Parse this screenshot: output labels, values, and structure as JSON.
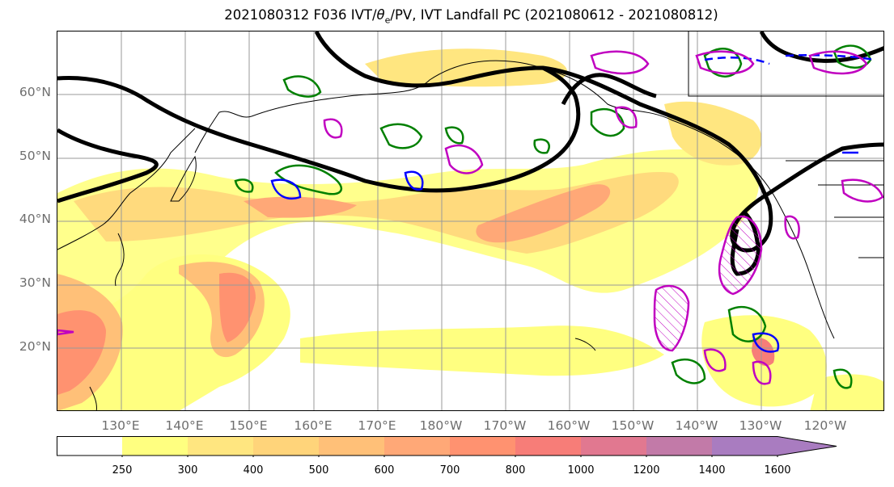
{
  "title": "2021080312 F036 IVT/θe/PV, IVT Landfall PC (2021080612 - 2021080812)",
  "title_parts": {
    "pre": "2021080312 F036 IVT/",
    "theta": "θ",
    "sub": "e",
    "post": "/PV, IVT Landfall PC (2021080612 - 2021080812)"
  },
  "lat_labels": [
    "60°N",
    "50°N",
    "40°N",
    "30°N",
    "20°N"
  ],
  "lon_labels": [
    "130°E",
    "140°E",
    "150°E",
    "160°E",
    "170°E",
    "180°W",
    "170°W",
    "160°W",
    "150°W",
    "140°W",
    "130°W",
    "120°W"
  ],
  "colorbar": {
    "levels": [
      "250",
      "300",
      "400",
      "500",
      "600",
      "700",
      "800",
      "1000",
      "1200",
      "1400",
      "1600"
    ],
    "colors": [
      "#ffffff",
      "#ffff80",
      "#ffe680",
      "#ffd47a",
      "#ffc078",
      "#ffa877",
      "#ff9270",
      "#f77d78",
      "#e17890",
      "#c27aa8",
      "#a97cc0"
    ],
    "extend": "max"
  },
  "legend_colors": {
    "ivt_landfall_pc": "#000000",
    "theta_e": "#008000",
    "pv_blue": "#0000ff",
    "pv_magenta": "#c000c0"
  }
}
